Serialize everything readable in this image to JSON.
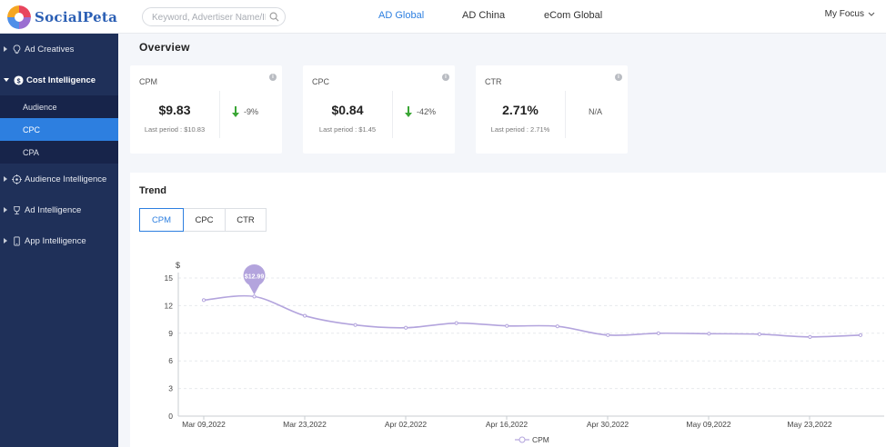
{
  "header": {
    "logo_text": "SocialPeta",
    "search_placeholder": "Keyword, Advertiser Name/ID",
    "nav": [
      {
        "label": "AD Global",
        "active": true
      },
      {
        "label": "AD China",
        "active": false
      },
      {
        "label": "eCom Global",
        "active": false
      }
    ],
    "focus_label": "My Focus"
  },
  "sidebar": {
    "items": [
      {
        "label": "Ad Creatives",
        "icon": "lightbulb-icon"
      },
      {
        "label": "Cost Intelligence",
        "icon": "dollar-circle-icon"
      },
      {
        "label": "Audience Intelligence",
        "icon": "target-icon"
      },
      {
        "label": "Ad Intelligence",
        "icon": "trophy-icon"
      },
      {
        "label": "App Intelligence",
        "icon": "phone-icon"
      }
    ],
    "sub_items": [
      {
        "label": "Audience",
        "active": false
      },
      {
        "label": "CPC",
        "active": true
      },
      {
        "label": "CPA",
        "active": false
      }
    ]
  },
  "overview": {
    "title": "Overview",
    "cards": [
      {
        "name": "CPM",
        "value": "$9.83",
        "last": "Last period : $10.83",
        "change": "-9%",
        "direction": "down"
      },
      {
        "name": "CPC",
        "value": "$0.84",
        "last": "Last period : $1.45",
        "change": "-42%",
        "direction": "down"
      },
      {
        "name": "CTR",
        "value": "2.71%",
        "last": "Last period : 2.71%",
        "change": "N/A",
        "direction": "none"
      }
    ]
  },
  "trend": {
    "title": "Trend",
    "tabs": [
      "CPM",
      "CPC",
      "CTR"
    ],
    "active_tab": "CPM"
  },
  "colors": {
    "accent": "#2d7fe0",
    "sidebar_bg": "#1f3059",
    "line": "#b3a4dd",
    "down_arrow": "#3aa635"
  },
  "chart_data": {
    "type": "line",
    "ylabel": "$",
    "ylim": [
      0,
      15
    ],
    "yticks": [
      0,
      3,
      6,
      9,
      12,
      15
    ],
    "x": [
      "Mar 09,2022",
      "Mar 16,2022",
      "Mar 23,2022",
      "Mar 26,2022",
      "Apr 02,2022",
      "Apr 09,2022",
      "Apr 16,2022",
      "Apr 23,2022",
      "Apr 30,2022",
      "May 05,2022",
      "May 12,2022",
      "May 19,2022",
      "May 26,2022",
      "Jun 02,2022"
    ],
    "xticks": [
      "Mar 09,2022",
      "Mar 23,2022",
      "Apr 02,2022",
      "Apr 16,2022",
      "Apr 30,2022",
      "May 09,2022",
      "May 23,2022"
    ],
    "series": [
      {
        "name": "CPM",
        "values": [
          12.6,
          12.99,
          10.9,
          9.9,
          9.6,
          10.1,
          9.8,
          9.75,
          8.8,
          9.0,
          8.95,
          8.9,
          8.6,
          8.8
        ]
      }
    ],
    "marker": {
      "index": 1,
      "label": "$12.99"
    },
    "grid": true,
    "legend": "bottom"
  }
}
